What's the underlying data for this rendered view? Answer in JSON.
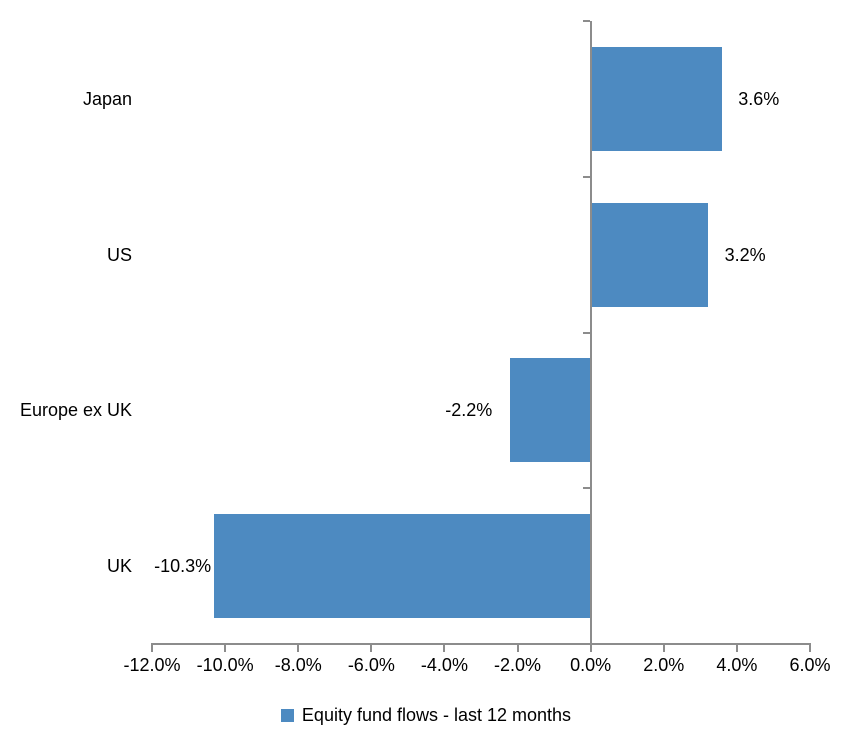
{
  "chart_data": {
    "type": "bar",
    "orientation": "horizontal",
    "title": "",
    "series_name": "Equity fund flows - last 12 months",
    "categories": [
      "Japan",
      "US",
      "Europe ex UK",
      "UK"
    ],
    "values": [
      3.6,
      3.2,
      -2.2,
      -10.3
    ],
    "data_labels": [
      "3.6%",
      "3.2%",
      "-2.2%",
      "-10.3%"
    ],
    "xlim": [
      -12,
      6
    ],
    "x_ticks": [
      -12,
      -10,
      -8,
      -6,
      -4,
      -2,
      0,
      2,
      4,
      6
    ],
    "x_tick_labels": [
      "-12.0%",
      "-10.0%",
      "-8.0%",
      "-6.0%",
      "-4.0%",
      "-2.0%",
      "0.0%",
      "2.0%",
      "4.0%",
      "6.0%"
    ],
    "grid": false,
    "legend_position": "bottom",
    "bar_color": "#4D8AC1",
    "axis_color": "#8C8C8C",
    "text_color": "#000000"
  },
  "legend": {
    "label": "Equity fund flows - last 12 months"
  }
}
